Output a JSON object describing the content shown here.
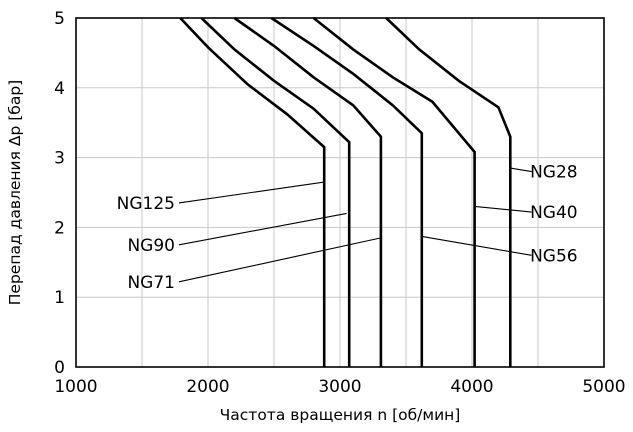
{
  "chart_data": {
    "type": "line",
    "xlabel": "Частота вращения n [об/мин]",
    "ylabel": "Перепад давления Δp [бар]",
    "xlim": [
      1000,
      5000
    ],
    "ylim": [
      0,
      5
    ],
    "xticks": [
      1000,
      2000,
      3000,
      4000,
      5000
    ],
    "yticks": [
      0,
      1,
      2,
      3,
      4,
      5
    ],
    "x_grid": [
      1000,
      1500,
      2000,
      2500,
      3000,
      3500,
      4000,
      4500,
      5000
    ],
    "y_grid": [
      0,
      1,
      2,
      3,
      4,
      5
    ],
    "grid": true,
    "colors": {
      "line": "#000000",
      "grid": "#c8c8c8"
    },
    "series": [
      {
        "name": "NG125",
        "points": [
          [
            1790,
            5
          ],
          [
            2000,
            4.58
          ],
          [
            2300,
            4.05
          ],
          [
            2600,
            3.62
          ],
          [
            2880,
            3.15
          ],
          [
            2880,
            0
          ]
        ]
      },
      {
        "name": "NG90",
        "points": [
          [
            1950,
            5
          ],
          [
            2200,
            4.55
          ],
          [
            2500,
            4.1
          ],
          [
            2800,
            3.7
          ],
          [
            3070,
            3.22
          ],
          [
            3070,
            0
          ]
        ]
      },
      {
        "name": "NG71",
        "points": [
          [
            2200,
            5
          ],
          [
            2500,
            4.6
          ],
          [
            2800,
            4.15
          ],
          [
            3100,
            3.75
          ],
          [
            3310,
            3.3
          ],
          [
            3310,
            0
          ]
        ]
      },
      {
        "name": "NG56",
        "points": [
          [
            2480,
            5
          ],
          [
            2800,
            4.6
          ],
          [
            3100,
            4.2
          ],
          [
            3400,
            3.75
          ],
          [
            3620,
            3.35
          ],
          [
            3620,
            0
          ]
        ]
      },
      {
        "name": "NG40",
        "points": [
          [
            2800,
            5
          ],
          [
            3100,
            4.55
          ],
          [
            3400,
            4.15
          ],
          [
            3700,
            3.8
          ],
          [
            4020,
            3.08
          ],
          [
            4020,
            0
          ]
        ]
      },
      {
        "name": "NG28",
        "points": [
          [
            3350,
            5
          ],
          [
            3600,
            4.55
          ],
          [
            3900,
            4.1
          ],
          [
            4200,
            3.72
          ],
          [
            4290,
            3.3
          ],
          [
            4290,
            0
          ]
        ]
      }
    ],
    "annotations": [
      {
        "text": "NG125",
        "side": "left",
        "label_at": [
          1750,
          2.35
        ],
        "arrow_to": [
          2880,
          2.65
        ]
      },
      {
        "text": "NG90",
        "side": "left",
        "label_at": [
          1750,
          1.75
        ],
        "arrow_to": [
          3050,
          2.2
        ]
      },
      {
        "text": "NG71",
        "side": "left",
        "label_at": [
          1750,
          1.22
        ],
        "arrow_to": [
          3310,
          1.85
        ]
      },
      {
        "text": "NG28",
        "side": "right",
        "label_at": [
          4800,
          2.8
        ],
        "arrow_to": [
          4290,
          2.85
        ]
      },
      {
        "text": "NG40",
        "side": "right",
        "label_at": [
          4800,
          2.22
        ],
        "arrow_to": [
          4020,
          2.3
        ]
      },
      {
        "text": "NG56",
        "side": "right",
        "label_at": [
          4800,
          1.6
        ],
        "arrow_to": [
          3620,
          1.87
        ]
      }
    ]
  }
}
